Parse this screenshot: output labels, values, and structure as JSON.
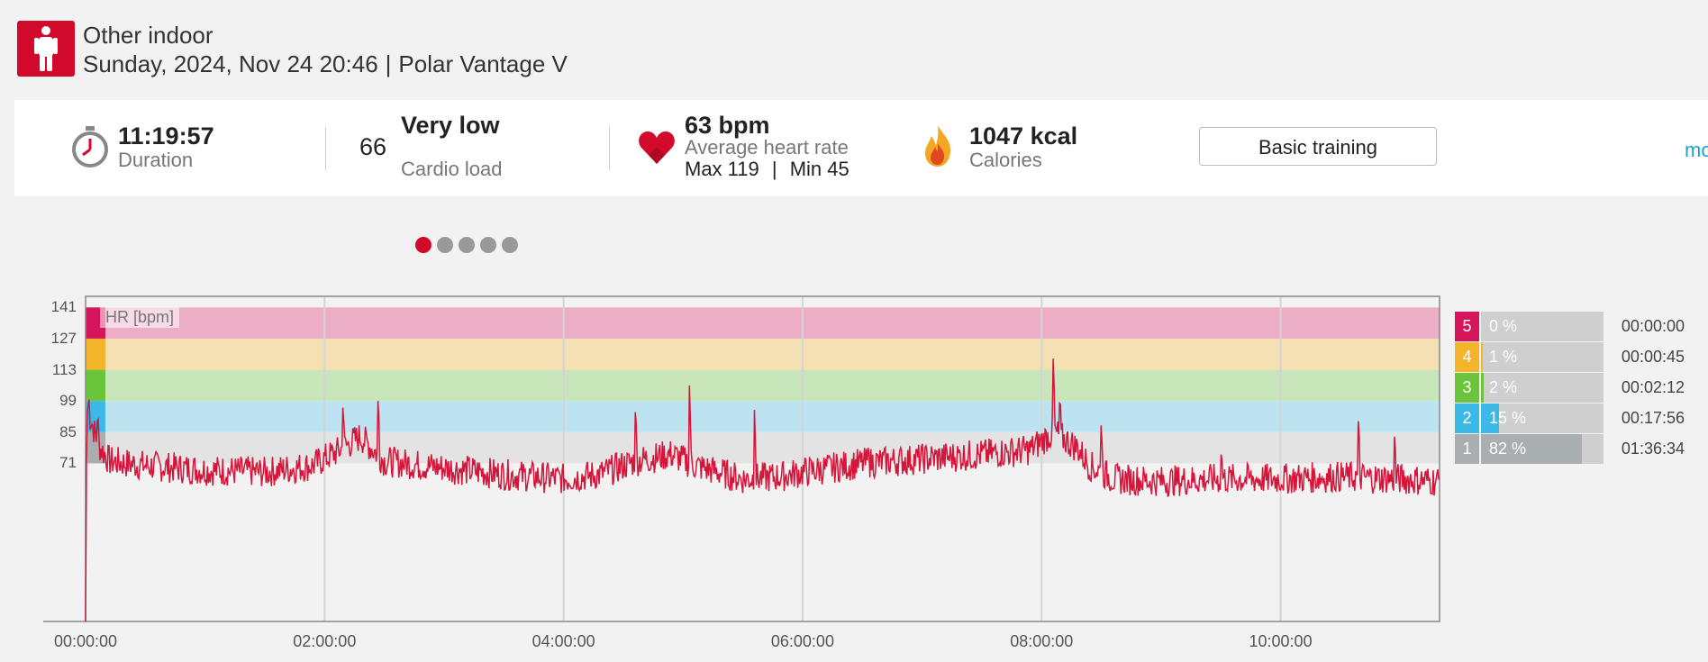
{
  "header": {
    "sport": "Other indoor",
    "date": "Sunday, 2024, Nov 24 20:46",
    "separator": "|",
    "device": "Polar Vantage V",
    "icon": "person-standing-icon",
    "accent": "#d10a2b"
  },
  "summary": {
    "duration": {
      "value": "11:19:57",
      "label": "Duration",
      "icon": "stopwatch-icon"
    },
    "cardio": {
      "value": "66",
      "level": "Very low",
      "label": "Cardio load",
      "dots_filled": 1,
      "dots_total": 5
    },
    "heart": {
      "value": "63 bpm",
      "label": "Average heart rate",
      "max": "Max 119",
      "sep": "|",
      "min": "Min 45",
      "icon": "heart-icon"
    },
    "calories": {
      "value": "1047 kcal",
      "label": "Calories",
      "icon": "flame-icon"
    },
    "training_button": "Basic training",
    "more_link": "mo"
  },
  "chart_data": {
    "type": "line",
    "series": [
      {
        "name": "HR [bpm]",
        "color": "#d6153b"
      }
    ],
    "series_label": "HR [bpm]",
    "x_ticks": [
      "00:00:00",
      "02:00:00",
      "04:00:00",
      "06:00:00",
      "08:00:00",
      "10:00:00"
    ],
    "y_ticks": [
      141,
      127,
      113,
      99,
      85,
      71
    ],
    "x_unit": "hours",
    "xlim": [
      0,
      11.33
    ],
    "ylim": [
      0,
      146
    ],
    "grid": true,
    "zones": [
      {
        "from": 127,
        "to": 141,
        "color": "#ebaec5"
      },
      {
        "from": 113,
        "to": 127,
        "color": "#f4e0b3"
      },
      {
        "from": 99,
        "to": 113,
        "color": "#c9e6ba"
      },
      {
        "from": 85,
        "to": 99,
        "color": "#bde3f1"
      },
      {
        "from": 71,
        "to": 85,
        "color": "#e3e3e3"
      }
    ],
    "hr_profile": [
      [
        0.0,
        0
      ],
      [
        0.01,
        95
      ],
      [
        0.05,
        90
      ],
      [
        0.1,
        80
      ],
      [
        0.2,
        72
      ],
      [
        0.5,
        70
      ],
      [
        1.0,
        68
      ],
      [
        1.5,
        67
      ],
      [
        1.9,
        70
      ],
      [
        2.1,
        76
      ],
      [
        2.3,
        83
      ],
      [
        2.5,
        72
      ],
      [
        3.0,
        69
      ],
      [
        3.5,
        66
      ],
      [
        4.0,
        64
      ],
      [
        4.3,
        66
      ],
      [
        4.6,
        72
      ],
      [
        4.9,
        75
      ],
      [
        5.1,
        70
      ],
      [
        5.5,
        64
      ],
      [
        5.8,
        65
      ],
      [
        6.0,
        67
      ],
      [
        6.5,
        71
      ],
      [
        7.0,
        73
      ],
      [
        7.5,
        75
      ],
      [
        7.9,
        77
      ],
      [
        8.1,
        85
      ],
      [
        8.3,
        78
      ],
      [
        8.4,
        70
      ],
      [
        8.6,
        64
      ],
      [
        9.0,
        63
      ],
      [
        9.5,
        64
      ],
      [
        10.0,
        64
      ],
      [
        10.5,
        65
      ],
      [
        11.0,
        64
      ],
      [
        11.33,
        63
      ]
    ],
    "hr_spikes": [
      [
        0.02,
        98
      ],
      [
        0.1,
        90
      ],
      [
        2.15,
        96
      ],
      [
        2.45,
        99
      ],
      [
        4.6,
        94
      ],
      [
        5.05,
        106
      ],
      [
        5.6,
        95
      ],
      [
        6.55,
        78
      ],
      [
        8.1,
        118
      ],
      [
        8.15,
        98
      ],
      [
        8.5,
        88
      ],
      [
        9.5,
        75
      ],
      [
        10.65,
        90
      ],
      [
        10.95,
        83
      ]
    ]
  },
  "zones_table": [
    {
      "zone": "5",
      "pct_label": "0 %",
      "fraction": 0.0,
      "time": "00:00:00",
      "color": "#d6155d"
    },
    {
      "zone": "4",
      "pct_label": "1 %",
      "fraction": 0.01,
      "time": "00:00:45",
      "color": "#f5b52b"
    },
    {
      "zone": "3",
      "pct_label": "2 %",
      "fraction": 0.02,
      "time": "00:02:12",
      "color": "#6bc53b"
    },
    {
      "zone": "2",
      "pct_label": "15 %",
      "fraction": 0.15,
      "time": "00:17:56",
      "color": "#3db9e7"
    },
    {
      "zone": "1",
      "pct_label": "82 %",
      "fraction": 0.82,
      "time": "01:36:34",
      "color": "#a9afb0"
    }
  ]
}
